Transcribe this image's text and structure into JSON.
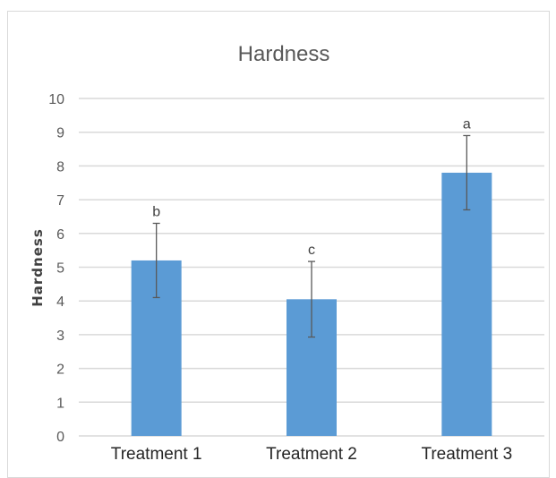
{
  "chart_data": {
    "type": "bar",
    "title": "Hardness",
    "ylabel": "Hardness",
    "xlabel": "",
    "categories": [
      "Treatment 1",
      "Treatment 2",
      "Treatment 3"
    ],
    "values": [
      5.2,
      4.05,
      7.8
    ],
    "error_bars": [
      1.1,
      1.12,
      1.1
    ],
    "significance_labels": [
      "b",
      "c",
      "a"
    ],
    "ylim": [
      0,
      10
    ],
    "yticks": [
      "0",
      "1",
      "2",
      "3",
      "4",
      "5",
      "6",
      "7",
      "8",
      "9",
      "10"
    ],
    "grid": true,
    "legend": "none",
    "colors": {
      "bar": "#5b9bd5",
      "grid": "#d9d9d9",
      "error_bar": "#595959"
    }
  }
}
